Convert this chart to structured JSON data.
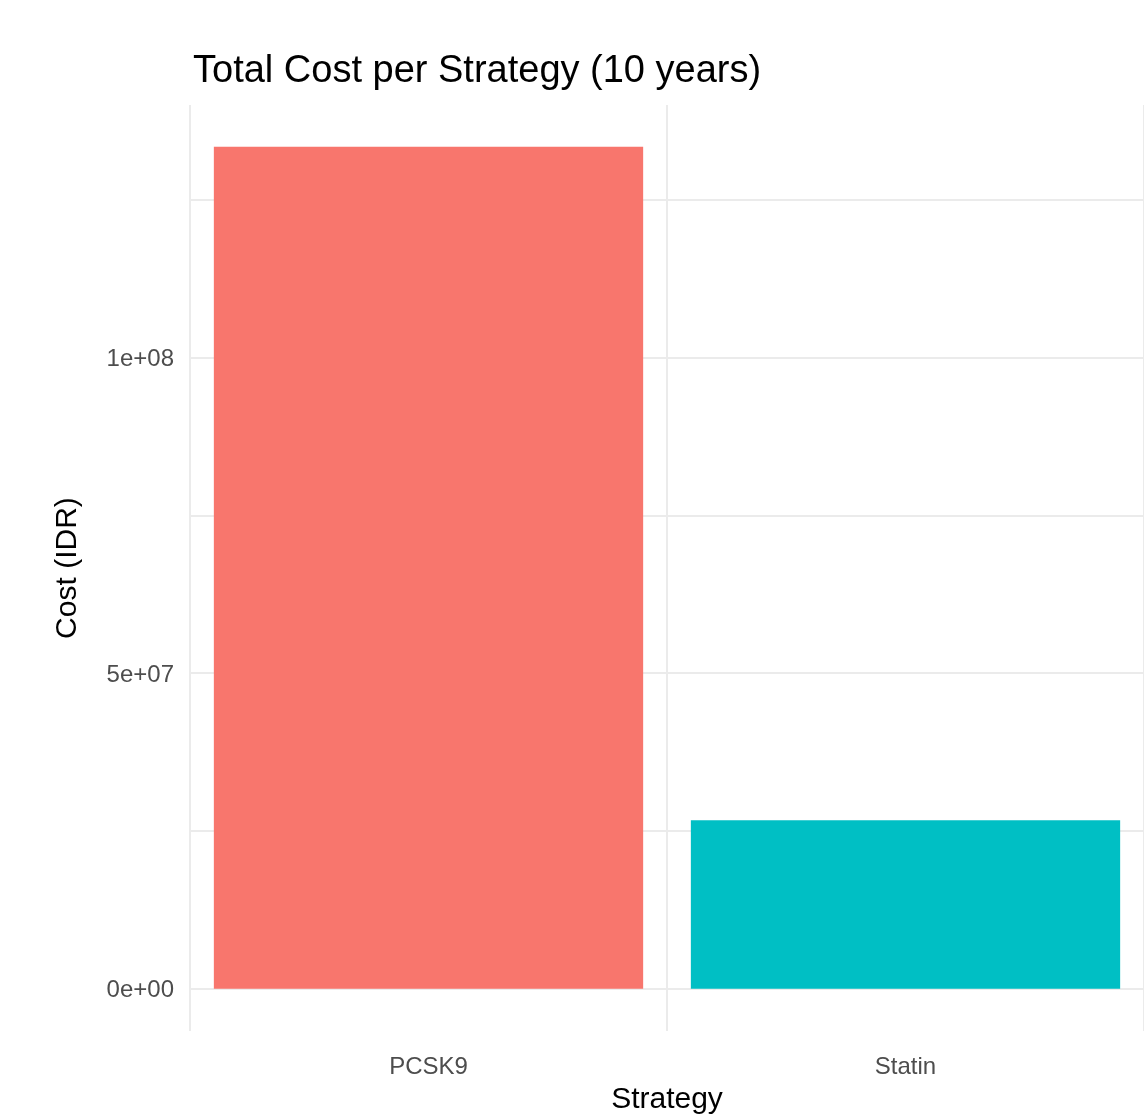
{
  "chart_data": {
    "type": "bar",
    "title": "Total Cost per Strategy (10 years)",
    "xlabel": "Strategy",
    "ylabel": "Cost (IDR)",
    "categories": [
      "PCSK9",
      "Statin"
    ],
    "values": [
      133400000,
      26700000
    ],
    "colors": [
      "#f8766d",
      "#00bfc4"
    ],
    "ylim": [
      -6700000,
      140000000
    ],
    "yticks": [
      {
        "value": 0,
        "label": "0e+00"
      },
      {
        "value": 25000000,
        "label": null
      },
      {
        "value": 50000000,
        "label": "5e+07"
      },
      {
        "value": 75000000,
        "label": null
      },
      {
        "value": 100000000,
        "label": "1e+08"
      },
      {
        "value": 125000000,
        "label": null
      }
    ],
    "grid": true
  }
}
